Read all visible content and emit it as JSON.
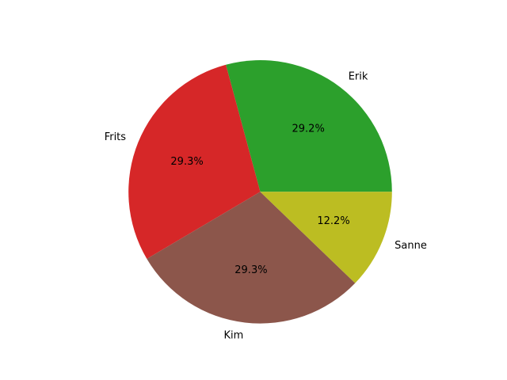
{
  "chart_data": {
    "type": "pie",
    "categories": [
      "Erik",
      "Frits",
      "Kim",
      "Sanne"
    ],
    "values": [
      29.2,
      29.3,
      29.3,
      12.2
    ],
    "value_labels": [
      "29.2%",
      "29.3%",
      "29.3%",
      "12.2%"
    ],
    "colors": [
      "#2ca02c",
      "#d62728",
      "#8c564b",
      "#bcbd22"
    ],
    "title": "",
    "start_angle_deg": 0,
    "direction": "counterclockwise",
    "legend": "none"
  }
}
